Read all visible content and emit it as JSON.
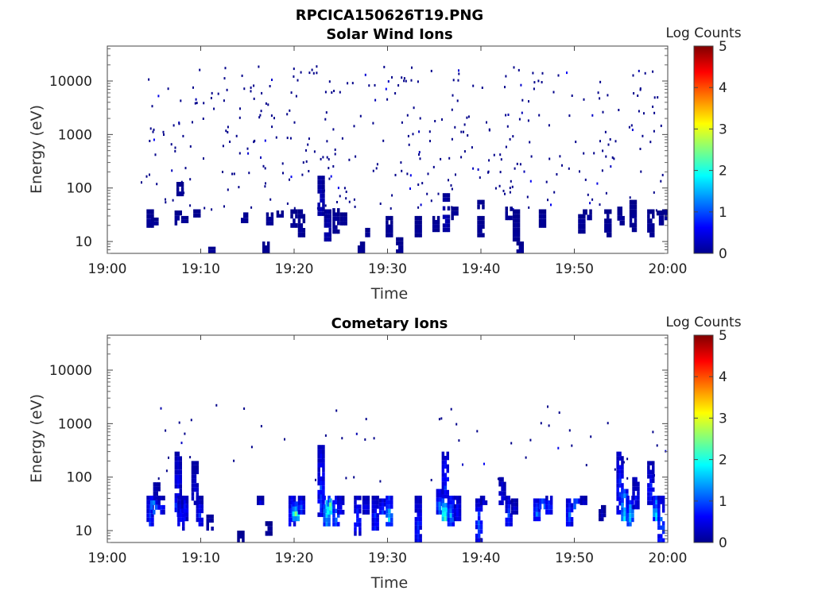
{
  "figure": {
    "title": "RPCICA150626T19.PNG"
  },
  "colormap": "jet",
  "chart_data": [
    {
      "type": "heatmap",
      "title": "Solar Wind Ions",
      "xlabel": "Time",
      "ylabel": "Energy (eV)",
      "x_ticks": [
        "19:00",
        "19:10",
        "19:20",
        "19:30",
        "19:40",
        "19:50",
        "20:00"
      ],
      "x_range_minutes": [
        0,
        60
      ],
      "y_scale": "log",
      "y_ticks": [
        10,
        100,
        1000,
        10000
      ],
      "y_range": [
        6,
        45000
      ],
      "colorbar": {
        "title": "Log Counts",
        "ticks": [
          0,
          1,
          2,
          3,
          4,
          5
        ],
        "range": [
          0,
          5
        ]
      },
      "blocks": [
        {
          "t": 4.6,
          "e1": 18,
          "e2": 40,
          "v": 0.1
        },
        {
          "t": 5.1,
          "e1": 20,
          "e2": 28,
          "v": 0.1
        },
        {
          "t": 7.6,
          "e1": 20,
          "e2": 38,
          "v": 0.1
        },
        {
          "t": 8.3,
          "e1": 22,
          "e2": 30,
          "v": 0.1
        },
        {
          "t": 9.6,
          "e1": 28,
          "e2": 40,
          "v": 0.1
        },
        {
          "t": 7.8,
          "e1": 70,
          "e2": 130,
          "v": 0.1
        },
        {
          "t": 11.2,
          "e1": 6,
          "e2": 8,
          "v": 0.1
        },
        {
          "t": 14.7,
          "e1": 22,
          "e2": 35,
          "v": 0.1
        },
        {
          "t": 17.4,
          "e1": 20,
          "e2": 35,
          "v": 0.1
        },
        {
          "t": 17.0,
          "e1": 6,
          "e2": 10,
          "v": 0.1
        },
        {
          "t": 18.5,
          "e1": 28,
          "e2": 38,
          "v": 0.1
        },
        {
          "t": 20.0,
          "e1": 18,
          "e2": 40,
          "v": 0.1
        },
        {
          "t": 20.8,
          "e1": 12,
          "e2": 40,
          "v": 0.1
        },
        {
          "t": 22.9,
          "e1": 30,
          "e2": 170,
          "v": 0.2
        },
        {
          "t": 23.6,
          "e1": 10,
          "e2": 40,
          "v": 0.2
        },
        {
          "t": 24.5,
          "e1": 14,
          "e2": 42,
          "v": 0.1
        },
        {
          "t": 25.3,
          "e1": 20,
          "e2": 35,
          "v": 0.1
        },
        {
          "t": 27.2,
          "e1": 6,
          "e2": 10,
          "v": 0.1
        },
        {
          "t": 28.0,
          "e1": 12,
          "e2": 18,
          "v": 0.1
        },
        {
          "t": 30.2,
          "e1": 12,
          "e2": 30,
          "v": 0.1
        },
        {
          "t": 31.3,
          "e1": 6,
          "e2": 12,
          "v": 0.1
        },
        {
          "t": 33.3,
          "e1": 12,
          "e2": 30,
          "v": 0.1
        },
        {
          "t": 35.2,
          "e1": 15,
          "e2": 30,
          "v": 0.1
        },
        {
          "t": 36.3,
          "e1": 15,
          "e2": 80,
          "v": 0.2
        },
        {
          "t": 37.2,
          "e1": 25,
          "e2": 45,
          "v": 0.1
        },
        {
          "t": 40.0,
          "e1": 12,
          "e2": 30,
          "v": 0.1
        },
        {
          "t": 40.0,
          "e1": 40,
          "e2": 60,
          "v": 0.1
        },
        {
          "t": 43.0,
          "e1": 25,
          "e2": 45,
          "v": 0.1
        },
        {
          "t": 43.8,
          "e1": 10,
          "e2": 40,
          "v": 0.1
        },
        {
          "t": 44.2,
          "e1": 6,
          "e2": 10,
          "v": 0.1
        },
        {
          "t": 46.6,
          "e1": 18,
          "e2": 40,
          "v": 0.1
        },
        {
          "t": 50.8,
          "e1": 14,
          "e2": 40,
          "v": 0.1
        },
        {
          "t": 51.5,
          "e1": 25,
          "e2": 40,
          "v": 0.1
        },
        {
          "t": 53.6,
          "e1": 12,
          "e2": 40,
          "v": 0.1
        },
        {
          "t": 55.0,
          "e1": 20,
          "e2": 45,
          "v": 0.1
        },
        {
          "t": 56.3,
          "e1": 15,
          "e2": 60,
          "v": 0.1
        },
        {
          "t": 58.2,
          "e1": 12,
          "e2": 40,
          "v": 0.1
        },
        {
          "t": 59.2,
          "e1": 20,
          "e2": 38,
          "v": 0.1
        },
        {
          "t": 59.8,
          "e1": 25,
          "e2": 40,
          "v": 0.1
        }
      ],
      "scatter_energy_range": [
        40,
        20000
      ],
      "scatter_count": 380
    },
    {
      "type": "heatmap",
      "title": "Cometary Ions",
      "xlabel": "Time",
      "ylabel": "Energy (eV)",
      "x_ticks": [
        "19:00",
        "19:10",
        "19:20",
        "19:30",
        "19:40",
        "19:50",
        "20:00"
      ],
      "x_range_minutes": [
        0,
        60
      ],
      "y_scale": "log",
      "y_ticks": [
        10,
        100,
        1000,
        10000
      ],
      "y_range": [
        6,
        45000
      ],
      "colorbar": {
        "title": "Log Counts",
        "ticks": [
          0,
          1,
          2,
          3,
          4,
          5
        ],
        "range": [
          0,
          5
        ]
      },
      "blocks": [
        {
          "t": 4.6,
          "e1": 12,
          "e2": 45,
          "v": 0.6
        },
        {
          "t": 5.0,
          "e1": 20,
          "e2": 45,
          "v": 1.2
        },
        {
          "t": 5.3,
          "e1": 25,
          "e2": 80,
          "v": 0.3
        },
        {
          "t": 5.8,
          "e1": 20,
          "e2": 45,
          "v": 0.5
        },
        {
          "t": 7.6,
          "e1": 18,
          "e2": 50,
          "v": 0.8
        },
        {
          "t": 7.6,
          "e1": 50,
          "e2": 300,
          "v": 0.4
        },
        {
          "t": 7.9,
          "e1": 10,
          "e2": 45,
          "v": 0.6
        },
        {
          "t": 8.3,
          "e1": 15,
          "e2": 45,
          "v": 0.5
        },
        {
          "t": 9.4,
          "e1": 30,
          "e2": 200,
          "v": 0.3
        },
        {
          "t": 9.9,
          "e1": 12,
          "e2": 45,
          "v": 0.5
        },
        {
          "t": 11.0,
          "e1": 10,
          "e2": 20,
          "v": 0.2
        },
        {
          "t": 14.3,
          "e1": 6,
          "e2": 10,
          "v": 0.1
        },
        {
          "t": 16.4,
          "e1": 30,
          "e2": 45,
          "v": 0.3
        },
        {
          "t": 17.3,
          "e1": 8,
          "e2": 15,
          "v": 0.1
        },
        {
          "t": 19.8,
          "e1": 12,
          "e2": 45,
          "v": 0.7
        },
        {
          "t": 20.2,
          "e1": 15,
          "e2": 35,
          "v": 1.6
        },
        {
          "t": 20.8,
          "e1": 20,
          "e2": 45,
          "v": 0.6
        },
        {
          "t": 22.9,
          "e1": 18,
          "e2": 400,
          "v": 0.6
        },
        {
          "t": 23.5,
          "e1": 12,
          "e2": 45,
          "v": 1.4
        },
        {
          "t": 23.9,
          "e1": 20,
          "e2": 40,
          "v": 2.0
        },
        {
          "t": 24.5,
          "e1": 12,
          "e2": 45,
          "v": 0.9
        },
        {
          "t": 25.0,
          "e1": 20,
          "e2": 45,
          "v": 0.5
        },
        {
          "t": 26.8,
          "e1": 8,
          "e2": 45,
          "v": 0.6
        },
        {
          "t": 27.7,
          "e1": 20,
          "e2": 45,
          "v": 0.4
        },
        {
          "t": 28.7,
          "e1": 10,
          "e2": 45,
          "v": 0.6
        },
        {
          "t": 29.5,
          "e1": 20,
          "e2": 40,
          "v": 0.7
        },
        {
          "t": 30.2,
          "e1": 12,
          "e2": 45,
          "v": 1.1
        },
        {
          "t": 33.3,
          "e1": 6,
          "e2": 45,
          "v": 0.6
        },
        {
          "t": 35.6,
          "e1": 20,
          "e2": 60,
          "v": 0.8
        },
        {
          "t": 36.2,
          "e1": 15,
          "e2": 40,
          "v": 1.6
        },
        {
          "t": 36.2,
          "e1": 40,
          "e2": 300,
          "v": 0.6
        },
        {
          "t": 36.8,
          "e1": 12,
          "e2": 45,
          "v": 1.0
        },
        {
          "t": 37.5,
          "e1": 15,
          "e2": 45,
          "v": 0.5
        },
        {
          "t": 39.8,
          "e1": 6,
          "e2": 40,
          "v": 0.7
        },
        {
          "t": 40.3,
          "e1": 30,
          "e2": 45,
          "v": 0.3
        },
        {
          "t": 42.3,
          "e1": 30,
          "e2": 100,
          "v": 0.4
        },
        {
          "t": 43.0,
          "e1": 12,
          "e2": 45,
          "v": 0.6
        },
        {
          "t": 43.6,
          "e1": 20,
          "e2": 40,
          "v": 0.3
        },
        {
          "t": 46.0,
          "e1": 15,
          "e2": 40,
          "v": 0.8
        },
        {
          "t": 46.6,
          "e1": 25,
          "e2": 40,
          "v": 1.3
        },
        {
          "t": 47.3,
          "e1": 20,
          "e2": 45,
          "v": 0.6
        },
        {
          "t": 49.5,
          "e1": 12,
          "e2": 40,
          "v": 0.7
        },
        {
          "t": 50.3,
          "e1": 25,
          "e2": 40,
          "v": 1.2
        },
        {
          "t": 51.0,
          "e1": 30,
          "e2": 45,
          "v": 0.3
        },
        {
          "t": 53.0,
          "e1": 15,
          "e2": 30,
          "v": 0.2
        },
        {
          "t": 54.9,
          "e1": 20,
          "e2": 300,
          "v": 0.6
        },
        {
          "t": 55.4,
          "e1": 15,
          "e2": 60,
          "v": 1.4
        },
        {
          "t": 56.0,
          "e1": 12,
          "e2": 45,
          "v": 1.1
        },
        {
          "t": 56.6,
          "e1": 25,
          "e2": 100,
          "v": 0.4
        },
        {
          "t": 58.2,
          "e1": 30,
          "e2": 200,
          "v": 0.5
        },
        {
          "t": 58.8,
          "e1": 15,
          "e2": 45,
          "v": 1.2
        },
        {
          "t": 59.3,
          "e1": 6,
          "e2": 45,
          "v": 0.8
        }
      ],
      "scatter_energy_range": [
        80,
        2500
      ],
      "scatter_count": 60
    }
  ]
}
